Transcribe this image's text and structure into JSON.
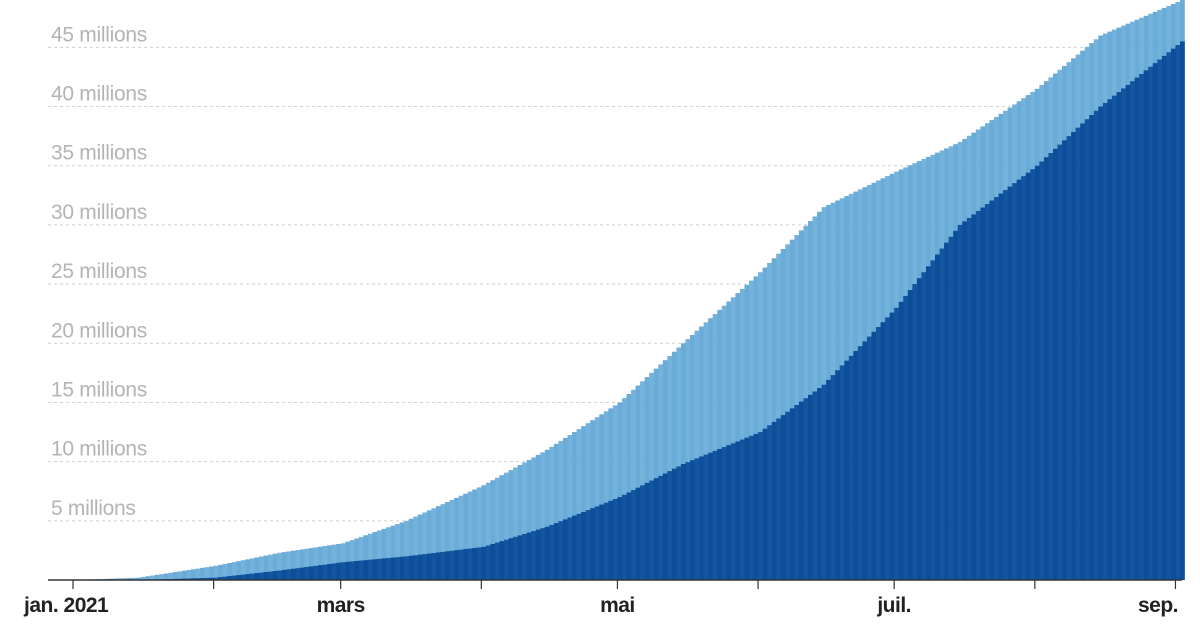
{
  "chart_data": {
    "type": "bar",
    "stacked": false,
    "overlapping": true,
    "title": "",
    "xlabel": "",
    "ylabel": "",
    "ylim": [
      0,
      49000000
    ],
    "grid": true,
    "legend": "none",
    "y_ticks": [
      {
        "value": 5000000,
        "label": "5 millions"
      },
      {
        "value": 10000000,
        "label": "10 millions"
      },
      {
        "value": 15000000,
        "label": "15 millions"
      },
      {
        "value": 20000000,
        "label": "20 millions"
      },
      {
        "value": 25000000,
        "label": "25 millions"
      },
      {
        "value": 30000000,
        "label": "30 millions"
      },
      {
        "value": 35000000,
        "label": "35 millions"
      },
      {
        "value": 40000000,
        "label": "40 millions"
      },
      {
        "value": 45000000,
        "label": "45 millions"
      }
    ],
    "x_ticks": [
      {
        "date": "2021-01-01",
        "label": "jan. 2021"
      },
      {
        "date": "2021-02-01",
        "label": ""
      },
      {
        "date": "2021-03-01",
        "label": "mars"
      },
      {
        "date": "2021-04-01",
        "label": ""
      },
      {
        "date": "2021-05-01",
        "label": "mai"
      },
      {
        "date": "2021-06-01",
        "label": ""
      },
      {
        "date": "2021-07-01",
        "label": "juil."
      },
      {
        "date": "2021-08-01",
        "label": ""
      },
      {
        "date": "2021-09-01",
        "label": "sep."
      }
    ],
    "x_range": [
      "2021-01-01",
      "2021-09-02"
    ],
    "colors": {
      "series_back": "#6aacd8",
      "series_front": "#0c4e9a",
      "grid": "#cfcfcf",
      "axis": "#333333",
      "y_tick_text": "#b4b4b4",
      "x_tick_text": "#222222"
    },
    "series": [
      {
        "points": [
          [
            "2021-01-01",
            0
          ],
          [
            "2021-01-15",
            200000
          ],
          [
            "2021-02-01",
            1200000
          ],
          [
            "2021-02-15",
            2300000
          ],
          [
            "2021-03-01",
            3100000
          ],
          [
            "2021-03-15",
            5000000
          ],
          [
            "2021-04-01",
            8000000
          ],
          [
            "2021-04-15",
            11000000
          ],
          [
            "2021-05-01",
            15000000
          ],
          [
            "2021-05-15",
            20000000
          ],
          [
            "2021-06-01",
            26000000
          ],
          [
            "2021-06-15",
            31500000
          ],
          [
            "2021-07-01",
            34500000
          ],
          [
            "2021-07-15",
            37000000
          ],
          [
            "2021-08-01",
            41500000
          ],
          [
            "2021-08-15",
            46000000
          ],
          [
            "2021-09-02",
            49000000
          ]
        ]
      },
      {
        "points": [
          [
            "2021-01-01",
            0
          ],
          [
            "2021-01-15",
            0
          ],
          [
            "2021-02-01",
            200000
          ],
          [
            "2021-02-15",
            800000
          ],
          [
            "2021-03-01",
            1500000
          ],
          [
            "2021-03-15",
            2000000
          ],
          [
            "2021-04-01",
            2800000
          ],
          [
            "2021-04-15",
            4500000
          ],
          [
            "2021-05-01",
            7000000
          ],
          [
            "2021-05-15",
            9800000
          ],
          [
            "2021-06-01",
            12500000
          ],
          [
            "2021-06-15",
            16500000
          ],
          [
            "2021-07-01",
            23000000
          ],
          [
            "2021-07-15",
            30000000
          ],
          [
            "2021-08-01",
            35000000
          ],
          [
            "2021-08-15",
            40000000
          ],
          [
            "2021-09-02",
            45500000
          ]
        ]
      }
    ]
  }
}
